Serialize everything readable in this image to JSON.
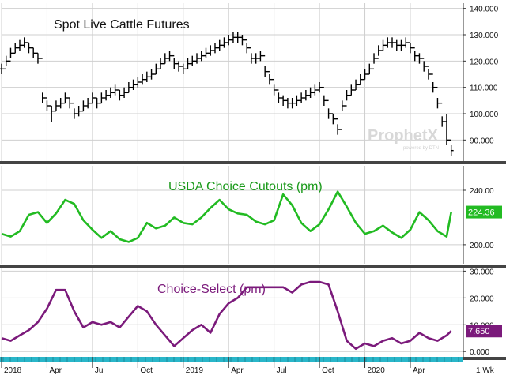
{
  "chart_data": [
    {
      "type": "ohlc",
      "title": "Spot Live Cattle Futures",
      "y_ticks": [
        "140.000",
        "130.000",
        "120.000",
        "110.000",
        "100.000",
        "90.000"
      ],
      "ylim": [
        82,
        142
      ],
      "grid": true,
      "color": "#000000",
      "x": [
        0.0,
        0.3,
        0.6,
        0.9,
        1.2,
        1.5,
        1.8,
        2.1,
        2.4,
        2.7,
        3.0,
        3.3,
        3.6,
        3.9,
        4.2,
        4.5,
        4.8,
        5.1,
        5.4,
        5.7,
        6.0,
        6.3,
        6.6,
        6.9,
        7.2,
        7.5,
        7.8,
        8.1,
        8.4,
        8.7,
        9.0,
        9.3,
        9.6,
        9.9,
        10.2,
        10.5,
        10.8,
        11.1,
        11.4,
        11.7,
        12.0,
        12.3,
        12.6,
        12.9,
        13.2,
        13.5,
        13.8,
        14.1,
        14.4,
        14.7,
        15.0,
        15.3,
        15.6,
        15.9,
        16.2,
        16.5,
        16.8,
        17.1,
        17.4,
        17.7,
        18.0,
        18.3,
        18.6,
        18.9,
        19.2,
        19.5,
        19.8,
        20.1,
        20.4,
        20.7,
        21.0,
        21.3,
        21.6,
        21.9,
        22.2,
        22.5,
        22.8,
        23.1,
        23.4,
        23.7,
        24.0,
        24.3,
        24.6,
        24.9,
        25.2,
        25.5,
        25.8,
        26.1,
        26.4,
        26.7,
        27.0,
        27.3,
        27.6,
        27.9,
        28.2,
        28.5,
        28.8,
        29.1,
        29.4,
        29.7
      ],
      "close": [
        117,
        120,
        123,
        125,
        126,
        127,
        125,
        123,
        121,
        106,
        103,
        101,
        103,
        104,
        106,
        104,
        100,
        101,
        103,
        104,
        106,
        104,
        106,
        107,
        108,
        109,
        107,
        108,
        110,
        111,
        112,
        113,
        114,
        115,
        117,
        119,
        121,
        122,
        119,
        118,
        117,
        119,
        120,
        121,
        122,
        123,
        124,
        125,
        126,
        127,
        128,
        129,
        129,
        128,
        125,
        121,
        121,
        122,
        116,
        113,
        109,
        106,
        105,
        104,
        104,
        105,
        106,
        107,
        108,
        109,
        110,
        105,
        100,
        98,
        94,
        103,
        107,
        109,
        111,
        113,
        115,
        117,
        121,
        124,
        126,
        127,
        127,
        126,
        126,
        127,
        125,
        122,
        121,
        118,
        115,
        110,
        104,
        97,
        90,
        86
      ],
      "high": [
        119,
        122,
        125,
        127,
        128,
        129,
        127,
        125,
        123,
        108,
        105,
        103,
        105,
        106,
        108,
        106,
        102,
        103,
        105,
        106,
        108,
        106,
        108,
        109,
        110,
        111,
        109,
        110,
        112,
        113,
        114,
        115,
        116,
        117,
        119,
        121,
        123,
        124,
        121,
        120,
        119,
        121,
        122,
        123,
        124,
        125,
        126,
        127,
        128,
        129,
        130,
        131,
        131,
        130,
        127,
        123,
        123,
        124,
        118,
        115,
        111,
        108,
        107,
        106,
        106,
        107,
        108,
        109,
        110,
        111,
        112,
        107,
        102,
        100,
        96,
        105,
        109,
        111,
        113,
        115,
        117,
        119,
        123,
        126,
        128,
        129,
        129,
        128,
        128,
        129,
        127,
        124,
        123,
        120,
        117,
        112,
        106,
        99,
        100,
        88
      ],
      "low": [
        115,
        118,
        121,
        123,
        124,
        125,
        123,
        121,
        119,
        104,
        101,
        97,
        101,
        102,
        104,
        102,
        98,
        99,
        101,
        102,
        104,
        102,
        104,
        105,
        106,
        107,
        105,
        106,
        108,
        109,
        110,
        111,
        112,
        113,
        115,
        117,
        119,
        120,
        117,
        116,
        115,
        117,
        118,
        119,
        120,
        121,
        122,
        123,
        124,
        125,
        126,
        127,
        127,
        126,
        123,
        119,
        119,
        120,
        114,
        111,
        107,
        104,
        103,
        102,
        102,
        103,
        104,
        105,
        106,
        107,
        108,
        103,
        98,
        96,
        92,
        101,
        105,
        107,
        109,
        111,
        113,
        115,
        119,
        122,
        124,
        125,
        125,
        124,
        124,
        125,
        123,
        120,
        119,
        116,
        113,
        108,
        102,
        95,
        88,
        84
      ]
    },
    {
      "type": "line",
      "title": "USDA Choice Cutouts (pm)",
      "y_ticks": [
        "240.00",
        "200.00"
      ],
      "ylim": [
        186,
        258
      ],
      "grid": true,
      "color": "#22bb22",
      "last_value": "224.36",
      "x": [
        0,
        0.6,
        1.2,
        1.8,
        2.4,
        3.0,
        3.6,
        4.2,
        4.8,
        5.4,
        6.0,
        6.6,
        7.2,
        7.8,
        8.4,
        9.0,
        9.6,
        10.2,
        10.8,
        11.4,
        12.0,
        12.6,
        13.2,
        13.8,
        14.4,
        15.0,
        15.6,
        16.2,
        16.8,
        17.4,
        18.0,
        18.6,
        19.2,
        19.8,
        20.4,
        21.0,
        21.6,
        22.2,
        22.8,
        23.4,
        24.0,
        24.6,
        25.2,
        25.8,
        26.4,
        27.0,
        27.6,
        28.2,
        28.8,
        29.4,
        29.7
      ],
      "y": [
        208,
        206,
        210,
        222,
        224,
        216,
        223,
        233,
        230,
        218,
        211,
        205,
        210,
        204,
        202,
        205,
        216,
        212,
        214,
        220,
        216,
        215,
        220,
        227,
        233,
        226,
        223,
        222,
        217,
        215,
        218,
        237,
        229,
        216,
        210,
        215,
        226,
        239,
        228,
        216,
        208,
        210,
        214,
        209,
        205,
        211,
        224,
        218,
        210,
        206,
        224
      ],
      "y_start": 208
    },
    {
      "type": "line",
      "title": "Choice-Select (pm)",
      "y_ticks": [
        "30.000",
        "20.000",
        "10.000",
        "0.000"
      ],
      "ylim": [
        -2,
        31
      ],
      "grid": true,
      "color": "#7b1a7b",
      "last_value": "7.650",
      "x": [
        0,
        0.6,
        1.2,
        1.8,
        2.4,
        3.0,
        3.6,
        4.2,
        4.8,
        5.4,
        6.0,
        6.6,
        7.2,
        7.8,
        8.4,
        9.0,
        9.6,
        10.2,
        10.8,
        11.4,
        12.0,
        12.6,
        13.2,
        13.8,
        14.4,
        15.0,
        15.6,
        16.2,
        16.8,
        17.4,
        18.0,
        18.6,
        19.2,
        19.8,
        20.4,
        21.0,
        21.6,
        22.2,
        22.8,
        23.4,
        24.0,
        24.6,
        25.2,
        25.8,
        26.4,
        27.0,
        27.6,
        28.2,
        28.8,
        29.4,
        29.7
      ],
      "y": [
        5,
        4,
        6,
        8,
        11,
        16,
        23,
        23,
        15,
        9,
        11,
        10,
        11,
        9,
        13,
        17,
        15,
        10,
        6,
        2,
        5,
        8,
        10,
        7,
        14,
        18,
        20,
        24,
        24,
        24,
        24,
        24,
        22,
        25,
        26,
        26,
        25,
        15,
        4,
        1,
        3,
        2,
        4,
        5,
        3,
        4,
        7,
        5,
        4,
        6,
        7.65
      ]
    }
  ],
  "x_axis": {
    "labels": [
      {
        "x": 0.0,
        "label": "2018"
      },
      {
        "x": 3.0,
        "label": "Apr"
      },
      {
        "x": 6.0,
        "label": "Jul"
      },
      {
        "x": 9.0,
        "label": "Oct"
      },
      {
        "x": 12.0,
        "label": "2019"
      },
      {
        "x": 15.0,
        "label": "Apr"
      },
      {
        "x": 18.0,
        "label": "Jul"
      },
      {
        "x": 21.0,
        "label": "Oct"
      },
      {
        "x": 24.0,
        "label": "2020"
      },
      {
        "x": 27.0,
        "label": "Apr"
      }
    ],
    "periodicity": "1 Wk"
  },
  "watermark": {
    "brand": "ProphetX",
    "tagline": "powered by DTN"
  },
  "colors": {
    "divider": "#444444",
    "grid": "#cfcfcf",
    "axis_band": "#29b6c9"
  }
}
